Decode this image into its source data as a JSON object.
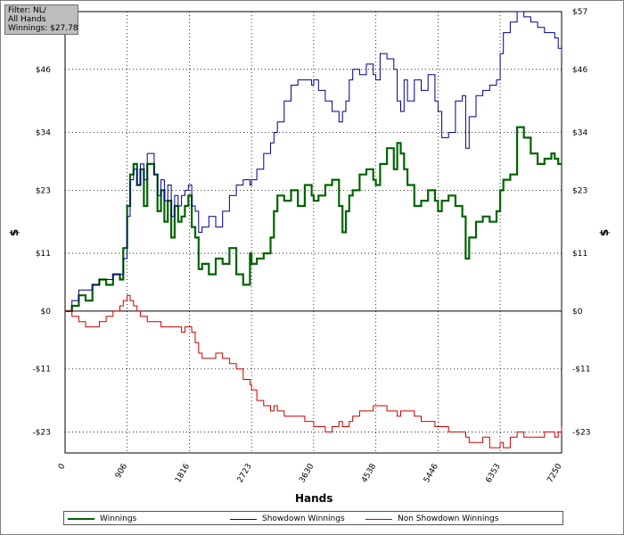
{
  "filter_box": {
    "line1": "Filter: NL/",
    "line2": "All Hands",
    "line3": "Winnings: $27.78"
  },
  "chart_data": {
    "type": "line",
    "xlabel": "Hands",
    "ylabel_left": "$",
    "ylabel_right": "$",
    "xlim": [
      0,
      7250
    ],
    "ylim": [
      -27,
      57
    ],
    "x_ticks": [
      0,
      906,
      1816,
      2723,
      3630,
      4538,
      5446,
      6353,
      7250
    ],
    "y_ticks": [
      -23,
      -11,
      0,
      11,
      23,
      34,
      46,
      57
    ],
    "y_tick_labels": [
      "-$23",
      "-$11",
      "$0",
      "$11",
      "$23",
      "$34",
      "$46",
      "$57"
    ],
    "grid": true,
    "legend_position": "bottom",
    "series": [
      {
        "name": "Winnings",
        "color": "#006400",
        "x": [
          0,
          100,
          200,
          300,
          400,
          500,
          600,
          700,
          800,
          850,
          906,
          950,
          1000,
          1050,
          1100,
          1150,
          1200,
          1300,
          1350,
          1400,
          1450,
          1500,
          1550,
          1600,
          1650,
          1700,
          1750,
          1800,
          1850,
          1900,
          1950,
          2000,
          2100,
          2200,
          2300,
          2400,
          2500,
          2600,
          2700,
          2723,
          2800,
          2900,
          3000,
          3050,
          3100,
          3200,
          3300,
          3400,
          3500,
          3600,
          3630,
          3700,
          3800,
          3900,
          4000,
          4050,
          4100,
          4150,
          4200,
          4300,
          4400,
          4500,
          4538,
          4600,
          4700,
          4800,
          4850,
          4900,
          4950,
          5000,
          5100,
          5200,
          5300,
          5400,
          5446,
          5500,
          5600,
          5700,
          5800,
          5850,
          5900,
          6000,
          6100,
          6200,
          6300,
          6353,
          6400,
          6500,
          6600,
          6700,
          6800,
          6900,
          7000,
          7100,
          7150,
          7200,
          7250
        ],
        "y": [
          0,
          1,
          3,
          2,
          5,
          6,
          5,
          7,
          6,
          12,
          20,
          26,
          28,
          24,
          27,
          20,
          28,
          26,
          19,
          23,
          17,
          21,
          14,
          20,
          17,
          18,
          20,
          22,
          16,
          14,
          8,
          9,
          7,
          10,
          9,
          12,
          7,
          5,
          11,
          9,
          10,
          11,
          14,
          19,
          22,
          21,
          23,
          20,
          24,
          22,
          21,
          22,
          24,
          25,
          20,
          15,
          19,
          22,
          23,
          26,
          27,
          25,
          24,
          28,
          31,
          27,
          32,
          30,
          27,
          24,
          20,
          21,
          23,
          21,
          19,
          21,
          22,
          20,
          18,
          10,
          14,
          17,
          18,
          17,
          19,
          23,
          25,
          26,
          35,
          33,
          30,
          28,
          29,
          30,
          29,
          28,
          28
        ]
      },
      {
        "name": "Showdown Winnings",
        "color": "#00008b",
        "x": [
          0,
          100,
          200,
          300,
          400,
          500,
          600,
          700,
          800,
          850,
          906,
          950,
          1000,
          1050,
          1100,
          1150,
          1200,
          1300,
          1350,
          1400,
          1450,
          1500,
          1550,
          1600,
          1650,
          1700,
          1750,
          1800,
          1850,
          1900,
          1950,
          2000,
          2100,
          2200,
          2300,
          2400,
          2500,
          2600,
          2700,
          2723,
          2800,
          2900,
          3000,
          3050,
          3100,
          3200,
          3300,
          3400,
          3500,
          3600,
          3630,
          3700,
          3800,
          3900,
          4000,
          4050,
          4100,
          4150,
          4200,
          4300,
          4400,
          4500,
          4538,
          4600,
          4700,
          4800,
          4850,
          4900,
          4950,
          5000,
          5100,
          5200,
          5300,
          5400,
          5446,
          5500,
          5600,
          5700,
          5800,
          5850,
          5900,
          6000,
          6100,
          6200,
          6300,
          6353,
          6400,
          6500,
          6600,
          6700,
          6800,
          6900,
          7000,
          7100,
          7150,
          7200,
          7250
        ],
        "y": [
          0,
          2,
          4,
          4,
          5,
          6,
          6,
          7,
          7,
          10,
          18,
          25,
          27,
          24,
          28,
          25,
          30,
          26,
          22,
          25,
          21,
          24,
          18,
          22,
          20,
          22,
          23,
          24,
          20,
          19,
          15,
          16,
          18,
          16,
          19,
          22,
          24,
          25,
          24,
          25,
          27,
          30,
          32,
          34,
          36,
          40,
          43,
          44,
          44,
          43,
          44,
          42,
          40,
          38,
          36,
          38,
          40,
          44,
          46,
          45,
          47,
          45,
          44,
          49,
          48,
          46,
          40,
          38,
          44,
          40,
          44,
          42,
          45,
          40,
          38,
          33,
          34,
          40,
          41,
          31,
          37,
          41,
          42,
          43,
          44,
          49,
          53,
          55,
          57,
          56,
          55,
          54,
          53,
          53,
          52,
          50,
          49
        ]
      },
      {
        "name": "Non Showdown Winnings",
        "color": "#cc0000",
        "x": [
          0,
          100,
          200,
          300,
          400,
          500,
          600,
          700,
          800,
          850,
          906,
          950,
          1000,
          1050,
          1100,
          1150,
          1200,
          1300,
          1350,
          1400,
          1450,
          1500,
          1550,
          1600,
          1650,
          1700,
          1750,
          1800,
          1850,
          1900,
          1950,
          2000,
          2100,
          2200,
          2300,
          2400,
          2500,
          2600,
          2700,
          2723,
          2800,
          2900,
          3000,
          3050,
          3100,
          3200,
          3300,
          3400,
          3500,
          3600,
          3630,
          3700,
          3800,
          3900,
          4000,
          4050,
          4100,
          4150,
          4200,
          4300,
          4400,
          4500,
          4538,
          4600,
          4700,
          4800,
          4850,
          4900,
          4950,
          5000,
          5100,
          5200,
          5300,
          5400,
          5446,
          5500,
          5600,
          5700,
          5800,
          5850,
          5900,
          6000,
          6100,
          6200,
          6300,
          6353,
          6400,
          6500,
          6600,
          6700,
          6800,
          6900,
          7000,
          7100,
          7150,
          7200,
          7250
        ],
        "y": [
          0,
          -1,
          -2,
          -3,
          -3,
          -2,
          -1,
          0,
          1,
          2,
          3,
          2,
          1,
          0,
          -1,
          -1,
          -2,
          -2,
          -2,
          -3,
          -3,
          -3,
          -3,
          -3,
          -3,
          -4,
          -3,
          -3,
          -4,
          -6,
          -8,
          -9,
          -9,
          -8,
          -9,
          -10,
          -11,
          -13,
          -14,
          -15,
          -17,
          -18,
          -19,
          -18,
          -19,
          -20,
          -20,
          -20,
          -21,
          -21,
          -22,
          -22,
          -23,
          -22,
          -21,
          -22,
          -22,
          -21,
          -20,
          -19,
          -19,
          -18,
          -18,
          -18,
          -19,
          -19,
          -20,
          -19,
          -19,
          -19,
          -20,
          -21,
          -21,
          -22,
          -22,
          -22,
          -23,
          -23,
          -23,
          -24,
          -25,
          -25,
          -24,
          -26,
          -26,
          -25,
          -26,
          -24,
          -23,
          -24,
          -24,
          -24,
          -23,
          -23,
          -24,
          -23,
          -22
        ]
      }
    ]
  }
}
